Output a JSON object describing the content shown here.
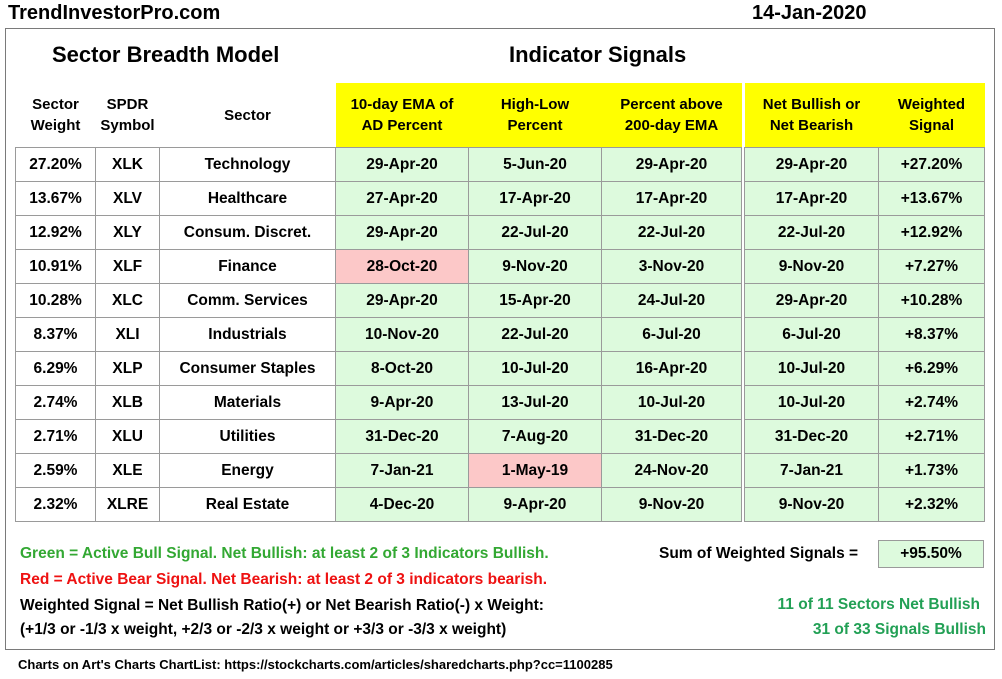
{
  "header": {
    "site": "TrendInvestorPro.com",
    "date": "14-Jan-2020"
  },
  "titles": {
    "left": "Sector Breadth Model",
    "right": "Indicator Signals"
  },
  "columns": {
    "weight": "Sector\nWeight",
    "symbol": "SPDR\nSymbol",
    "sector": "Sector",
    "ema": "10-day EMA of\nAD Percent",
    "highlow": "High-Low\nPercent",
    "pctabove": "Percent above\n200-day EMA",
    "net": "Net Bullish or\nNet Bearish",
    "weighted": "Weighted\nSignal"
  },
  "rows": [
    {
      "weight": "27.20%",
      "symbol": "XLK",
      "sector": "Technology",
      "ema": "29-Apr-20",
      "ema_c": "g",
      "hl": "5-Jun-20",
      "hl_c": "g",
      "pa": "29-Apr-20",
      "pa_c": "g",
      "net": "29-Apr-20",
      "ws": "+27.20%"
    },
    {
      "weight": "13.67%",
      "symbol": "XLV",
      "sector": "Healthcare",
      "ema": "27-Apr-20",
      "ema_c": "g",
      "hl": "17-Apr-20",
      "hl_c": "g",
      "pa": "17-Apr-20",
      "pa_c": "g",
      "net": "17-Apr-20",
      "ws": "+13.67%"
    },
    {
      "weight": "12.92%",
      "symbol": "XLY",
      "sector": "Consum. Discret.",
      "ema": "29-Apr-20",
      "ema_c": "g",
      "hl": "22-Jul-20",
      "hl_c": "g",
      "pa": "22-Jul-20",
      "pa_c": "g",
      "net": "22-Jul-20",
      "ws": "+12.92%"
    },
    {
      "weight": "10.91%",
      "symbol": "XLF",
      "sector": "Finance",
      "ema": "28-Oct-20",
      "ema_c": "r",
      "hl": "9-Nov-20",
      "hl_c": "g",
      "pa": "3-Nov-20",
      "pa_c": "g",
      "net": "9-Nov-20",
      "ws": "+7.27%"
    },
    {
      "weight": "10.28%",
      "symbol": "XLC",
      "sector": "Comm. Services",
      "ema": "29-Apr-20",
      "ema_c": "g",
      "hl": "15-Apr-20",
      "hl_c": "g",
      "pa": "24-Jul-20",
      "pa_c": "g",
      "net": "29-Apr-20",
      "ws": "+10.28%"
    },
    {
      "weight": "8.37%",
      "symbol": "XLI",
      "sector": "Industrials",
      "ema": "10-Nov-20",
      "ema_c": "g",
      "hl": "22-Jul-20",
      "hl_c": "g",
      "pa": "6-Jul-20",
      "pa_c": "g",
      "net": "6-Jul-20",
      "ws": "+8.37%"
    },
    {
      "weight": "6.29%",
      "symbol": "XLP",
      "sector": "Consumer Staples",
      "ema": "8-Oct-20",
      "ema_c": "g",
      "hl": "10-Jul-20",
      "hl_c": "g",
      "pa": "16-Apr-20",
      "pa_c": "g",
      "net": "10-Jul-20",
      "ws": "+6.29%"
    },
    {
      "weight": "2.74%",
      "symbol": "XLB",
      "sector": "Materials",
      "ema": "9-Apr-20",
      "ema_c": "g",
      "hl": "13-Jul-20",
      "hl_c": "g",
      "pa": "10-Jul-20",
      "pa_c": "g",
      "net": "10-Jul-20",
      "ws": "+2.74%"
    },
    {
      "weight": "2.71%",
      "symbol": "XLU",
      "sector": "Utilities",
      "ema": "31-Dec-20",
      "ema_c": "g",
      "hl": "7-Aug-20",
      "hl_c": "g",
      "pa": "31-Dec-20",
      "pa_c": "g",
      "net": "31-Dec-20",
      "ws": "+2.71%"
    },
    {
      "weight": "2.59%",
      "symbol": "XLE",
      "sector": "Energy",
      "ema": "7-Jan-21",
      "ema_c": "g",
      "hl": "1-May-19",
      "hl_c": "r",
      "pa": "24-Nov-20",
      "pa_c": "g",
      "net": "7-Jan-21",
      "ws": "+1.73%"
    },
    {
      "weight": "2.32%",
      "symbol": "XLRE",
      "sector": "Real Estate",
      "ema": "4-Dec-20",
      "ema_c": "g",
      "hl": "9-Apr-20",
      "hl_c": "g",
      "pa": "9-Nov-20",
      "pa_c": "g",
      "net": "9-Nov-20",
      "ws": "+2.32%"
    }
  ],
  "summary": {
    "sum_label": "Sum of Weighted Signals =",
    "sum_value": "+95.50%",
    "net_sectors": "11 of 11 Sectors Net Bullish",
    "signals": "31 of 33 Signals Bullish"
  },
  "legend": {
    "green": "Green = Active Bull Signal. Net Bullish: at least 2 of 3 Indicators Bullish.",
    "red": "Red = Active Bear Signal. Net Bearish: at least 2 of 3 indicators bearish.",
    "formula1": "Weighted Signal = Net Bullish Ratio(+) or Net Bearish Ratio(-) x Weight:",
    "formula2": "(+1/3 or -1/3 x weight, +2/3 or -2/3 x weight or +3/3 or -3/3 x weight)"
  },
  "footer": "Charts on Art's Charts ChartList: https://stockcharts.com/articles/sharedcharts.php?cc=1100285",
  "colors": {
    "bull": "#ddfadd",
    "bear": "#fcc8c8",
    "header": "#ffff00",
    "green_text": "#33a833",
    "red_text": "#ee1111",
    "net_text": "#22a055"
  }
}
